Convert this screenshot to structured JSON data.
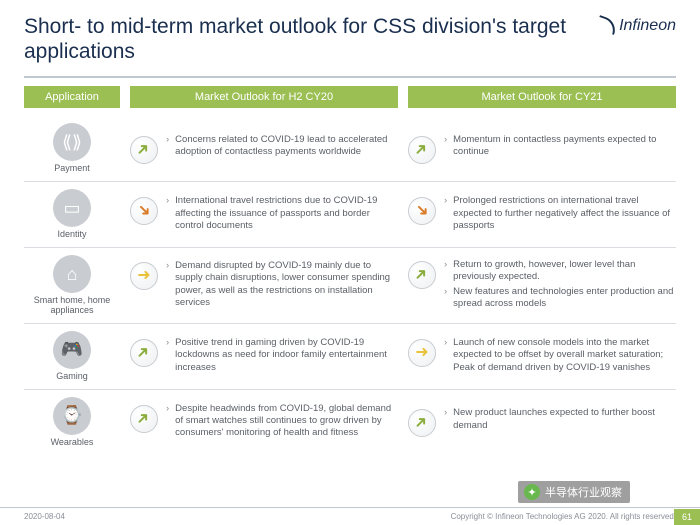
{
  "title": "Short- to mid-term market outlook for CSS division's target applications",
  "logo_text": "Infineon",
  "headers": {
    "application": "Application",
    "h2cy20": "Market Outlook for H2 CY20",
    "cy21": "Market Outlook for CY21"
  },
  "rows": [
    {
      "icon": "payment-icon",
      "glyph": "⟪⟫",
      "label": "Payment",
      "h2_dir": "up-right",
      "h2_bullets": [
        "Concerns related to COVID-19 lead to accelerated adoption of contactless payments worldwide"
      ],
      "cy21_dir": "up-right",
      "cy21_bullets": [
        "Momentum in contactless payments expected to continue"
      ]
    },
    {
      "icon": "identity-icon",
      "glyph": "▭",
      "label": "Identity",
      "h2_dir": "down-right",
      "h2_bullets": [
        "International travel restrictions due to COVID-19 affecting the issuance of passports and border control documents"
      ],
      "cy21_dir": "down-right",
      "cy21_bullets": [
        "Prolonged restrictions on international travel expected to further negatively affect the issuance of passports"
      ]
    },
    {
      "icon": "smarthome-icon",
      "glyph": "⌂",
      "label": "Smart home, home appliances",
      "h2_dir": "flat",
      "h2_bullets": [
        "Demand disrupted by COVID-19 mainly due to supply chain disruptions, lower consumer spending power, as well as the restrictions on installation services"
      ],
      "cy21_dir": "up-right",
      "cy21_bullets": [
        "Return to growth, however, lower level than previously expected.",
        "New features and technologies enter production and spread across models"
      ]
    },
    {
      "icon": "gaming-icon",
      "glyph": "🎮",
      "label": "Gaming",
      "h2_dir": "up-right",
      "h2_bullets": [
        "Positive trend in gaming driven by COVID-19 lockdowns as need for indoor family entertainment increases"
      ],
      "cy21_dir": "flat",
      "cy21_bullets": [
        "Launch of new console models into the market expected to be offset by overall market saturation; Peak of demand driven by COVID-19 vanishes"
      ]
    },
    {
      "icon": "wearables-icon",
      "glyph": "⌚",
      "label": "Wearables",
      "h2_dir": "up-right",
      "h2_bullets": [
        "Despite headwinds from COVID-19, global demand of smart watches still continues to grow driven by consumers' monitoring of health and fitness"
      ],
      "cy21_dir": "up-right",
      "cy21_bullets": [
        "New product launches expected to further boost demand"
      ]
    }
  ],
  "footer": {
    "date": "2020-08-04",
    "copyright": "Copyright © Infineon Technologies AG 2020. All rights reserved.",
    "page": "61"
  },
  "watermark": "半导体行业观察",
  "colors": {
    "accent_green": "#9bbf53",
    "title_navy": "#1a2f4f",
    "arrow_up": "#8aad3e",
    "arrow_down": "#d97b29",
    "arrow_flat": "#e8c23a",
    "icon_bg": "#c9ccd0"
  }
}
